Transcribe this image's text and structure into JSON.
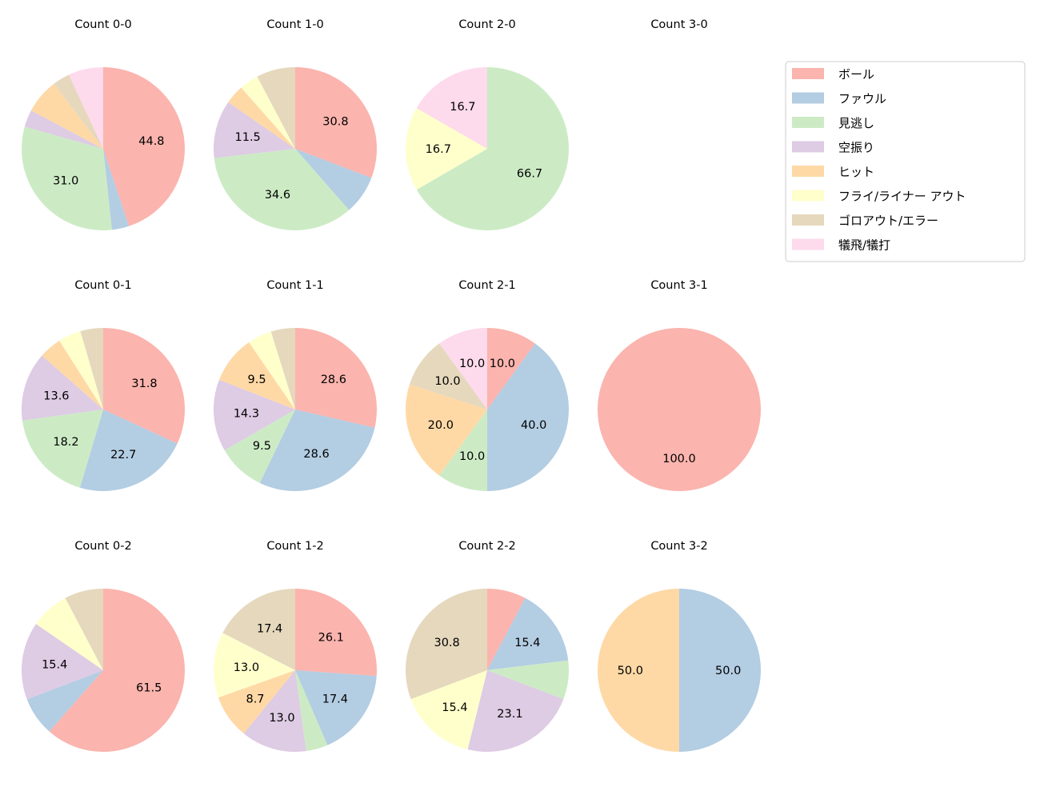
{
  "chart_data": {
    "type": "pie",
    "categories": [
      "ボール",
      "ファウル",
      "見逃し",
      "空振り",
      "ヒット",
      "フライ/ライナー アウト",
      "ゴロアウト/エラー",
      "犠飛/犠打"
    ],
    "colors": [
      "#fbb4ae",
      "#b3cde3",
      "#ccebc5",
      "#decbe4",
      "#fed9a6",
      "#ffffcc",
      "#e5d8bd",
      "#fddaec"
    ],
    "start_angle": 90,
    "direction": "clockwise",
    "legend_placement": "upper-right",
    "label_format": "percent, one decimal",
    "pies": [
      {
        "title": "Count 0-0",
        "values": [
          44.8,
          3.4,
          31.0,
          3.4,
          6.9,
          0,
          3.4,
          6.9
        ]
      },
      {
        "title": "Count 1-0",
        "values": [
          30.8,
          7.7,
          34.6,
          11.5,
          3.8,
          3.8,
          7.7,
          0
        ]
      },
      {
        "title": "Count 2-0",
        "values": [
          0,
          0,
          66.7,
          0,
          0,
          16.7,
          0,
          16.7
        ]
      },
      {
        "title": "Count 3-0",
        "values": []
      },
      {
        "title": "Count 0-1",
        "values": [
          31.8,
          22.7,
          18.2,
          13.6,
          4.5,
          4.5,
          4.5,
          0
        ]
      },
      {
        "title": "Count 1-1",
        "values": [
          28.6,
          28.6,
          9.5,
          14.3,
          9.5,
          4.8,
          4.8,
          0
        ]
      },
      {
        "title": "Count 2-1",
        "values": [
          10.0,
          40.0,
          10.0,
          0,
          20.0,
          0,
          10.0,
          10.0
        ]
      },
      {
        "title": "Count 3-1",
        "values": [
          100.0,
          0,
          0,
          0,
          0,
          0,
          0,
          0
        ]
      },
      {
        "title": "Count 0-2",
        "values": [
          61.5,
          7.7,
          0,
          15.4,
          0,
          7.7,
          7.7,
          0
        ]
      },
      {
        "title": "Count 1-2",
        "values": [
          26.1,
          17.4,
          4.3,
          13.0,
          8.7,
          13.0,
          17.4,
          0
        ]
      },
      {
        "title": "Count 2-2",
        "values": [
          7.7,
          15.4,
          7.7,
          23.1,
          0,
          15.4,
          30.8,
          0
        ]
      },
      {
        "title": "Count 3-2",
        "values": [
          0,
          50.0,
          0,
          0,
          50.0,
          0,
          0,
          0
        ]
      }
    ]
  }
}
